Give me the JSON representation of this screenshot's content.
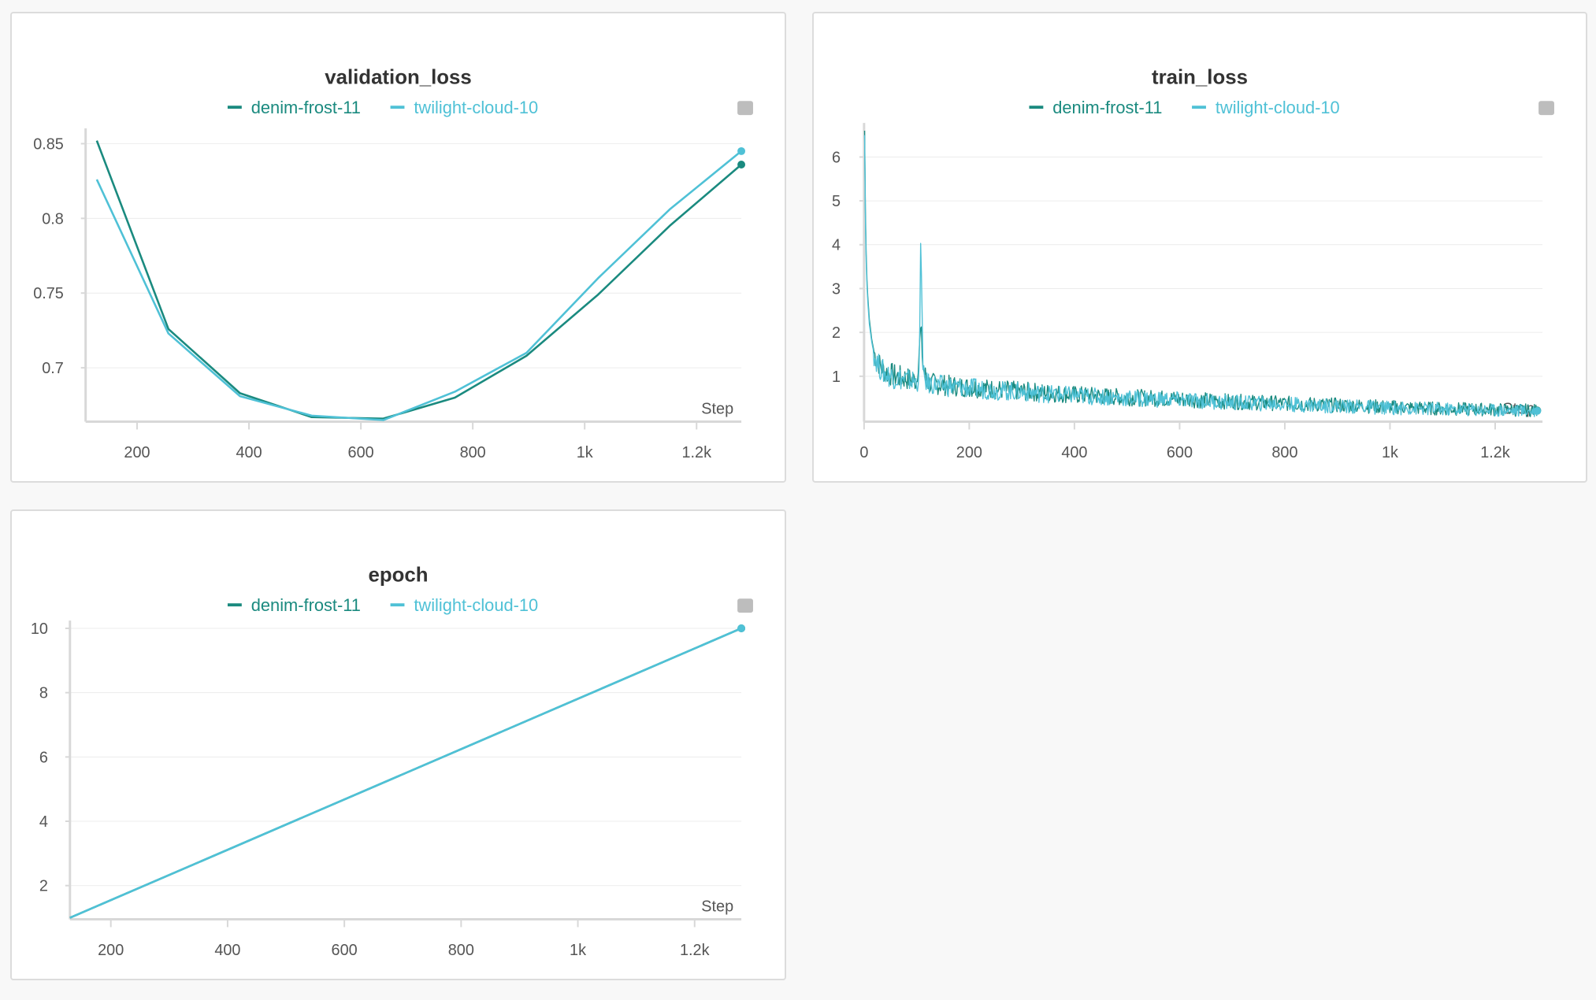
{
  "panels": [
    {
      "id": "validation",
      "chart_data": {
        "type": "line",
        "title": "validation_loss",
        "xlabel": "Step",
        "ylabel": "",
        "xlim": [
          108,
          1280
        ],
        "ylim": [
          0.665,
          0.855
        ],
        "x_ticks": [
          200,
          400,
          600,
          800,
          1000,
          1200
        ],
        "x_tick_labels": [
          "200",
          "400",
          "600",
          "800",
          "1k",
          "1.2k"
        ],
        "y_ticks": [
          0.7,
          0.75,
          0.8,
          0.85
        ],
        "y_tick_labels": [
          "0.7",
          "0.75",
          "0.8",
          "0.85"
        ],
        "grid": true,
        "legend_position": "top-center",
        "series": [
          {
            "name": "denim-frost-11",
            "color": "#1a8a7f",
            "x": [
              128,
              256,
              384,
              512,
              640,
              768,
              896,
              1024,
              1152,
              1280
            ],
            "y": [
              0.852,
              0.726,
              0.683,
              0.667,
              0.666,
              0.68,
              0.708,
              0.749,
              0.795,
              0.836
            ]
          },
          {
            "name": "twilight-cloud-10",
            "color": "#4fc1d6",
            "x": [
              128,
              256,
              384,
              512,
              640,
              768,
              896,
              1024,
              1152,
              1280
            ],
            "y": [
              0.826,
              0.723,
              0.681,
              0.668,
              0.665,
              0.684,
              0.71,
              0.76,
              0.806,
              0.845
            ]
          }
        ]
      }
    },
    {
      "id": "train",
      "chart_data": {
        "type": "line",
        "title": "train_loss",
        "xlabel": "Step",
        "ylabel": "",
        "xlim": [
          0,
          1290
        ],
        "ylim": [
          0,
          6.6
        ],
        "x_ticks": [
          0,
          200,
          400,
          600,
          800,
          1000,
          1200
        ],
        "x_tick_labels": [
          "0",
          "200",
          "400",
          "600",
          "800",
          "1k",
          "1.2k"
        ],
        "y_ticks": [
          1,
          2,
          3,
          4,
          5,
          6
        ],
        "y_tick_labels": [
          "1",
          "2",
          "3",
          "4",
          "5",
          "6"
        ],
        "grid": true,
        "legend_position": "top-center",
        "series": [
          {
            "name": "denim-frost-11",
            "color": "#1a8a7f",
            "x": [
              1,
              3,
              6,
              10,
              15,
              20,
              30,
              40,
              60,
              80,
              100,
              105,
              108,
              112,
              120,
              150,
              200,
              250,
              300,
              400,
              500,
              600,
              700,
              800,
              900,
              1000,
              1100,
              1200,
              1280
            ],
            "y": [
              6.6,
              4.2,
              3.0,
              2.3,
              1.8,
              1.5,
              1.25,
              1.1,
              1.0,
              0.95,
              0.9,
              1.6,
              2.1,
              1.2,
              0.85,
              0.8,
              0.75,
              0.7,
              0.66,
              0.58,
              0.52,
              0.48,
              0.42,
              0.38,
              0.34,
              0.3,
              0.26,
              0.24,
              0.22
            ]
          },
          {
            "name": "twilight-cloud-10",
            "color": "#4fc1d6",
            "x": [
              1,
              3,
              6,
              10,
              15,
              20,
              30,
              40,
              60,
              80,
              100,
              105,
              108,
              112,
              120,
              150,
              200,
              250,
              300,
              400,
              500,
              600,
              700,
              800,
              900,
              1000,
              1100,
              1200,
              1280
            ],
            "y": [
              6.5,
              4.0,
              2.9,
              2.2,
              1.75,
              1.45,
              1.2,
              1.05,
              0.97,
              0.92,
              0.88,
              0.95,
              4.4,
              1.0,
              0.84,
              0.78,
              0.73,
              0.68,
              0.64,
              0.56,
              0.5,
              0.46,
              0.4,
              0.36,
              0.32,
              0.28,
              0.25,
              0.23,
              0.21
            ]
          }
        ]
      }
    },
    {
      "id": "epoch",
      "chart_data": {
        "type": "line",
        "title": "epoch",
        "xlabel": "Step",
        "ylabel": "",
        "xlim": [
          130,
          1280
        ],
        "ylim": [
          1,
          10
        ],
        "x_ticks": [
          200,
          400,
          600,
          800,
          1000,
          1200
        ],
        "x_tick_labels": [
          "200",
          "400",
          "600",
          "800",
          "1k",
          "1.2k"
        ],
        "y_ticks": [
          2,
          4,
          6,
          8,
          10
        ],
        "y_tick_labels": [
          "2",
          "4",
          "6",
          "8",
          "10"
        ],
        "grid": true,
        "legend_position": "top-center",
        "series": [
          {
            "name": "denim-frost-11",
            "color": "#1a8a7f",
            "x": [
              130,
              1280
            ],
            "y": [
              1,
              10
            ]
          },
          {
            "name": "twilight-cloud-10",
            "color": "#4fc1d6",
            "x": [
              130,
              1280
            ],
            "y": [
              1,
              10
            ]
          }
        ]
      }
    }
  ]
}
